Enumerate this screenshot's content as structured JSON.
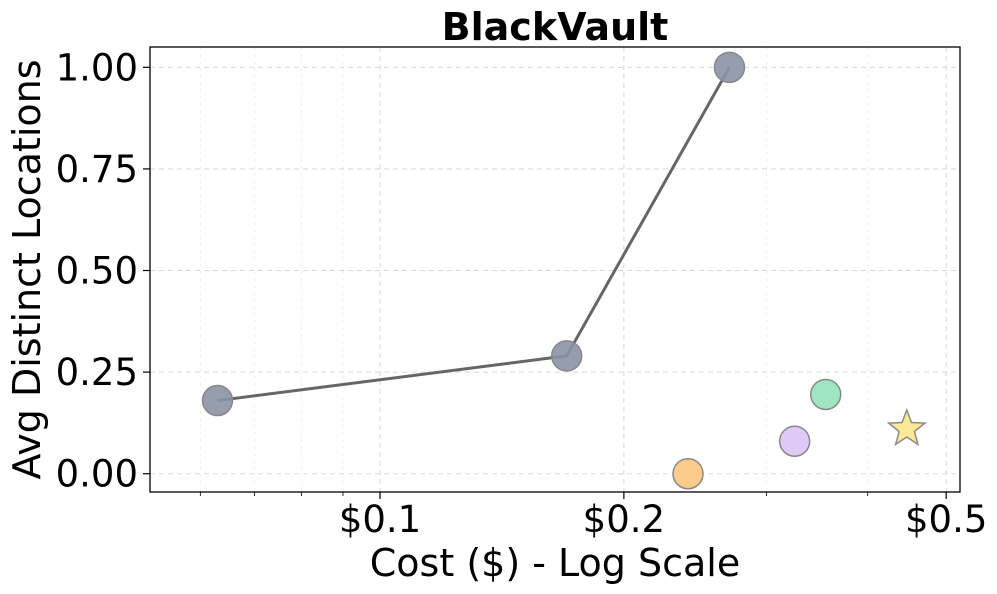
{
  "chart_data": {
    "type": "scatter",
    "title": "BlackVault",
    "xlabel": "Cost ($) - Log Scale",
    "ylabel": "Avg Distinct Locations",
    "x_scale": "log",
    "xlim": [
      0.052,
      0.52
    ],
    "ylim": [
      -0.045,
      1.05
    ],
    "x_ticks": [
      {
        "value": 0.1,
        "label": "$0.1"
      },
      {
        "value": 0.2,
        "label": "$0.2"
      },
      {
        "value": 0.5,
        "label": "$0.5"
      }
    ],
    "y_ticks": [
      {
        "value": 0.0,
        "label": "0.00"
      },
      {
        "value": 0.25,
        "label": "0.25"
      },
      {
        "value": 0.5,
        "label": "0.50"
      },
      {
        "value": 0.75,
        "label": "0.75"
      },
      {
        "value": 1.0,
        "label": "1.00"
      }
    ],
    "grid": true,
    "series": [
      {
        "line": true,
        "color": "#8a92a6",
        "line_color": "#666666",
        "marker": "circle",
        "points": [
          {
            "x": 0.063,
            "y": 0.18
          },
          {
            "x": 0.17,
            "y": 0.29
          },
          {
            "x": 0.27,
            "y": 1.0
          }
        ]
      },
      {
        "line": false,
        "color": "#fdc57f",
        "marker": "circle",
        "points": [
          {
            "x": 0.24,
            "y": 0.0
          }
        ]
      },
      {
        "line": false,
        "color": "#dcc3f5",
        "marker": "circle",
        "points": [
          {
            "x": 0.325,
            "y": 0.08
          }
        ]
      },
      {
        "line": false,
        "color": "#92e3ba",
        "marker": "circle",
        "points": [
          {
            "x": 0.355,
            "y": 0.195
          }
        ]
      },
      {
        "line": false,
        "color": "#fde990",
        "marker": "star",
        "points": [
          {
            "x": 0.447,
            "y": 0.11
          }
        ]
      }
    ]
  }
}
